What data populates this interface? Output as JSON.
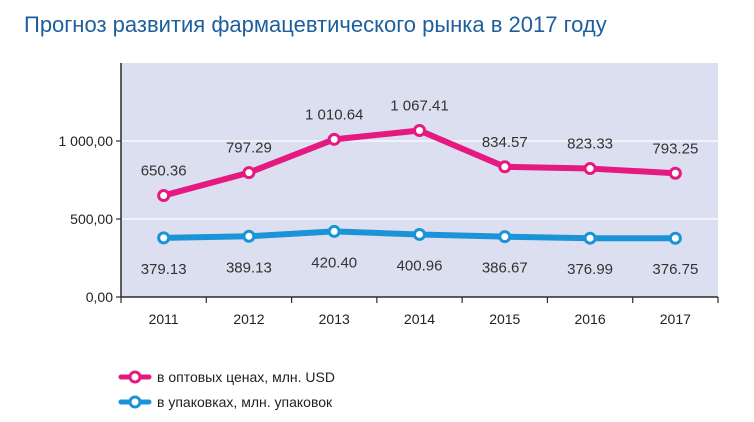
{
  "chart_data": {
    "type": "line",
    "title": "Прогноз развития фармацевтического рынка в 2017 году",
    "categories": [
      "2011",
      "2012",
      "2013",
      "2014",
      "2015",
      "2016",
      "2017"
    ],
    "ylim": [
      0,
      1500
    ],
    "yticks": [
      0,
      500,
      1000
    ],
    "ytick_labels": [
      "0,00",
      "500,00",
      "1 000,00"
    ],
    "series": [
      {
        "name": "в оптовых ценах, млн. USD",
        "color": "#e5197f",
        "values": [
          650.36,
          797.29,
          1010.64,
          1067.41,
          834.57,
          823.33,
          793.25
        ],
        "labels": [
          "650.36",
          "797.29",
          "1 010.64",
          "1 067.41",
          "834.57",
          "823.33",
          "793.25"
        ]
      },
      {
        "name": "в упаковках, млн. упаковок",
        "color": "#1a94d6",
        "values": [
          379.13,
          389.13,
          420.4,
          400.96,
          386.67,
          376.99,
          376.75
        ],
        "labels": [
          "379.13",
          "389.13",
          "420.40",
          "400.96",
          "386.67",
          "376.99",
          "376.75"
        ]
      }
    ],
    "plot_background": "#dcdff0",
    "grid": true
  }
}
